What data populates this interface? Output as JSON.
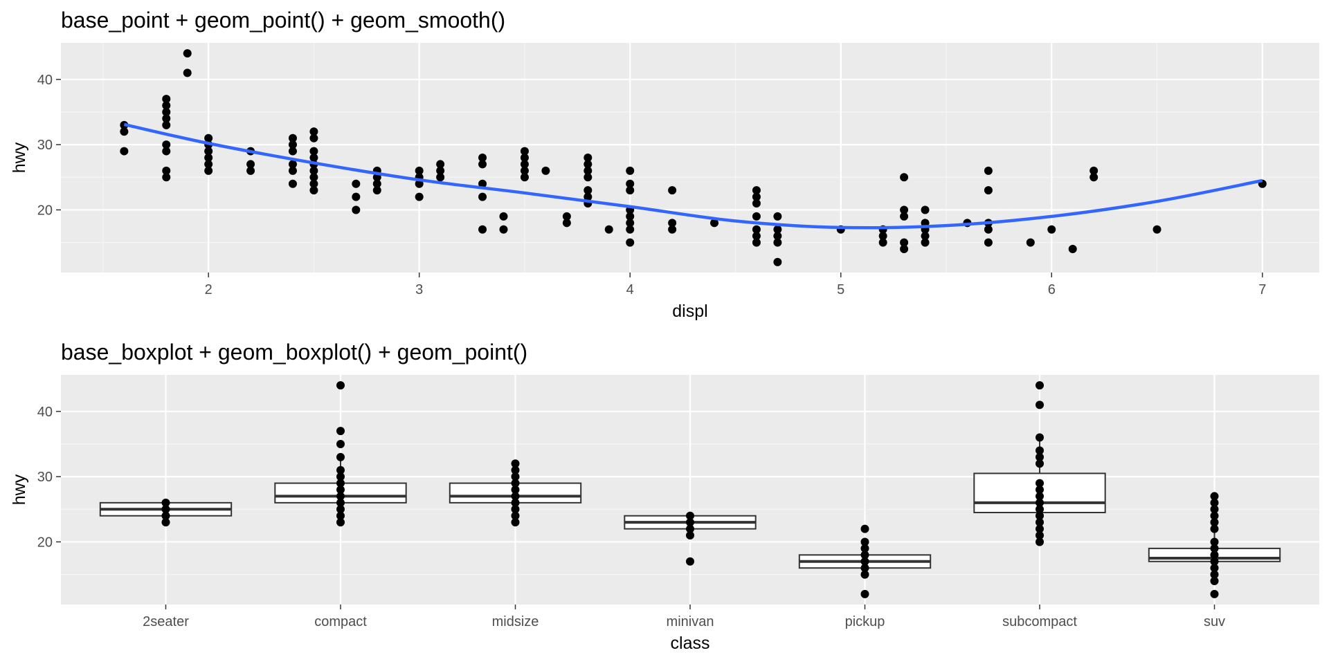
{
  "chart_data": [
    {
      "type": "scatter",
      "title": "base_point + geom_point() + geom_smooth()",
      "xlabel": "displ",
      "ylabel": "hwy",
      "xlim": [
        1.3,
        7.27
      ],
      "ylim": [
        10.4,
        45.6
      ],
      "xticks": [
        2,
        3,
        4,
        5,
        6,
        7
      ],
      "yticks": [
        20,
        30,
        40
      ],
      "grid": true,
      "smooth_color": "#3366FF",
      "points": [
        [
          1.6,
          33
        ],
        [
          1.6,
          32
        ],
        [
          1.6,
          29
        ],
        [
          1.8,
          37
        ],
        [
          1.8,
          36
        ],
        [
          1.8,
          35
        ],
        [
          1.8,
          34
        ],
        [
          1.8,
          33
        ],
        [
          1.8,
          30
        ],
        [
          1.8,
          29
        ],
        [
          1.8,
          26
        ],
        [
          1.8,
          25
        ],
        [
          1.9,
          44
        ],
        [
          1.9,
          41
        ],
        [
          2.0,
          31
        ],
        [
          2.0,
          30
        ],
        [
          2.0,
          29
        ],
        [
          2.0,
          28
        ],
        [
          2.0,
          27
        ],
        [
          2.0,
          26
        ],
        [
          2.2,
          29
        ],
        [
          2.2,
          27
        ],
        [
          2.2,
          26
        ],
        [
          2.4,
          31
        ],
        [
          2.4,
          30
        ],
        [
          2.4,
          29
        ],
        [
          2.4,
          27
        ],
        [
          2.4,
          26
        ],
        [
          2.4,
          24
        ],
        [
          2.5,
          32
        ],
        [
          2.5,
          31
        ],
        [
          2.5,
          29
        ],
        [
          2.5,
          28
        ],
        [
          2.5,
          27
        ],
        [
          2.5,
          26
        ],
        [
          2.5,
          25
        ],
        [
          2.5,
          24
        ],
        [
          2.5,
          23
        ],
        [
          2.7,
          24
        ],
        [
          2.7,
          22
        ],
        [
          2.7,
          20
        ],
        [
          2.8,
          26
        ],
        [
          2.8,
          25
        ],
        [
          2.8,
          24
        ],
        [
          2.8,
          23
        ],
        [
          3.0,
          26
        ],
        [
          3.0,
          25
        ],
        [
          3.0,
          24
        ],
        [
          3.0,
          22
        ],
        [
          3.1,
          27
        ],
        [
          3.1,
          26
        ],
        [
          3.1,
          25
        ],
        [
          3.3,
          28
        ],
        [
          3.3,
          27
        ],
        [
          3.3,
          24
        ],
        [
          3.3,
          22
        ],
        [
          3.3,
          17
        ],
        [
          3.4,
          19
        ],
        [
          3.4,
          17
        ],
        [
          3.5,
          29
        ],
        [
          3.5,
          28
        ],
        [
          3.5,
          27
        ],
        [
          3.5,
          26
        ],
        [
          3.5,
          25
        ],
        [
          3.6,
          26
        ],
        [
          3.7,
          19
        ],
        [
          3.7,
          18
        ],
        [
          3.8,
          28
        ],
        [
          3.8,
          27
        ],
        [
          3.8,
          26
        ],
        [
          3.8,
          25
        ],
        [
          3.8,
          23
        ],
        [
          3.8,
          22
        ],
        [
          3.8,
          21
        ],
        [
          3.9,
          17
        ],
        [
          4.0,
          26
        ],
        [
          4.0,
          24
        ],
        [
          4.0,
          23
        ],
        [
          4.0,
          20
        ],
        [
          4.0,
          19
        ],
        [
          4.0,
          18
        ],
        [
          4.0,
          17
        ],
        [
          4.0,
          15
        ],
        [
          4.2,
          23
        ],
        [
          4.2,
          18
        ],
        [
          4.2,
          17
        ],
        [
          4.4,
          18
        ],
        [
          4.6,
          23
        ],
        [
          4.6,
          22
        ],
        [
          4.6,
          21
        ],
        [
          4.6,
          19
        ],
        [
          4.6,
          17
        ],
        [
          4.6,
          16
        ],
        [
          4.6,
          15
        ],
        [
          4.7,
          19
        ],
        [
          4.7,
          17
        ],
        [
          4.7,
          16
        ],
        [
          4.7,
          15
        ],
        [
          4.7,
          12
        ],
        [
          5.0,
          17
        ],
        [
          5.2,
          17
        ],
        [
          5.2,
          16
        ],
        [
          5.2,
          15
        ],
        [
          5.3,
          25
        ],
        [
          5.3,
          20
        ],
        [
          5.3,
          19
        ],
        [
          5.3,
          15
        ],
        [
          5.3,
          14
        ],
        [
          5.4,
          20
        ],
        [
          5.4,
          18
        ],
        [
          5.4,
          17
        ],
        [
          5.4,
          16
        ],
        [
          5.4,
          15
        ],
        [
          5.6,
          18
        ],
        [
          5.7,
          26
        ],
        [
          5.7,
          23
        ],
        [
          5.7,
          18
        ],
        [
          5.7,
          17
        ],
        [
          5.7,
          15
        ],
        [
          5.9,
          15
        ],
        [
          6.0,
          17
        ],
        [
          6.1,
          14
        ],
        [
          6.2,
          26
        ],
        [
          6.2,
          25
        ],
        [
          6.5,
          17
        ],
        [
          7.0,
          24
        ]
      ],
      "smooth": [
        [
          1.6,
          33.1
        ],
        [
          2.0,
          30.2
        ],
        [
          2.5,
          27.2
        ],
        [
          3.0,
          24.6
        ],
        [
          3.5,
          22.6
        ],
        [
          4.0,
          20.5
        ],
        [
          4.5,
          18.3
        ],
        [
          5.0,
          17.3
        ],
        [
          5.5,
          17.6
        ],
        [
          6.0,
          19.0
        ],
        [
          6.5,
          21.3
        ],
        [
          7.0,
          24.5
        ]
      ]
    },
    {
      "type": "boxplot",
      "title": "base_boxplot + geom_boxplot() + geom_point()",
      "xlabel": "class",
      "ylabel": "hwy",
      "ylim": [
        10.4,
        45.6
      ],
      "yticks": [
        20,
        30,
        40
      ],
      "grid": true,
      "categories": [
        "2seater",
        "compact",
        "midsize",
        "minivan",
        "pickup",
        "subcompact",
        "suv"
      ],
      "boxes": [
        {
          "q1": 24,
          "median": 25,
          "q3": 26,
          "whisker_low": 23,
          "whisker_high": 26
        },
        {
          "q1": 26,
          "median": 27,
          "q3": 29,
          "whisker_low": 23,
          "whisker_high": 33
        },
        {
          "q1": 26,
          "median": 27,
          "q3": 29,
          "whisker_low": 23,
          "whisker_high": 32
        },
        {
          "q1": 22,
          "median": 23,
          "q3": 24,
          "whisker_low": 21,
          "whisker_high": 24
        },
        {
          "q1": 16,
          "median": 17,
          "q3": 18,
          "whisker_low": 15,
          "whisker_high": 20
        },
        {
          "q1": 24.5,
          "median": 26,
          "q3": 30.5,
          "whisker_low": 20,
          "whisker_high": 36
        },
        {
          "q1": 17,
          "median": 17.5,
          "q3": 19,
          "whisker_low": 14,
          "whisker_high": 22
        }
      ],
      "points": [
        [
          23,
          24,
          25,
          26
        ],
        [
          23,
          24,
          25,
          26,
          27,
          28,
          29,
          30,
          31,
          33,
          35,
          37,
          44
        ],
        [
          23,
          24,
          25,
          26,
          27,
          28,
          29,
          30,
          31,
          32
        ],
        [
          17,
          21,
          22,
          23,
          24
        ],
        [
          12,
          15,
          16,
          17,
          18,
          19,
          20,
          22
        ],
        [
          20,
          21,
          22,
          23,
          24,
          25,
          26,
          27,
          28,
          29,
          32,
          33,
          34,
          36,
          41,
          44
        ],
        [
          12,
          14,
          15,
          16,
          17,
          18,
          19,
          20,
          22,
          23,
          24,
          25,
          26,
          27
        ]
      ]
    }
  ]
}
